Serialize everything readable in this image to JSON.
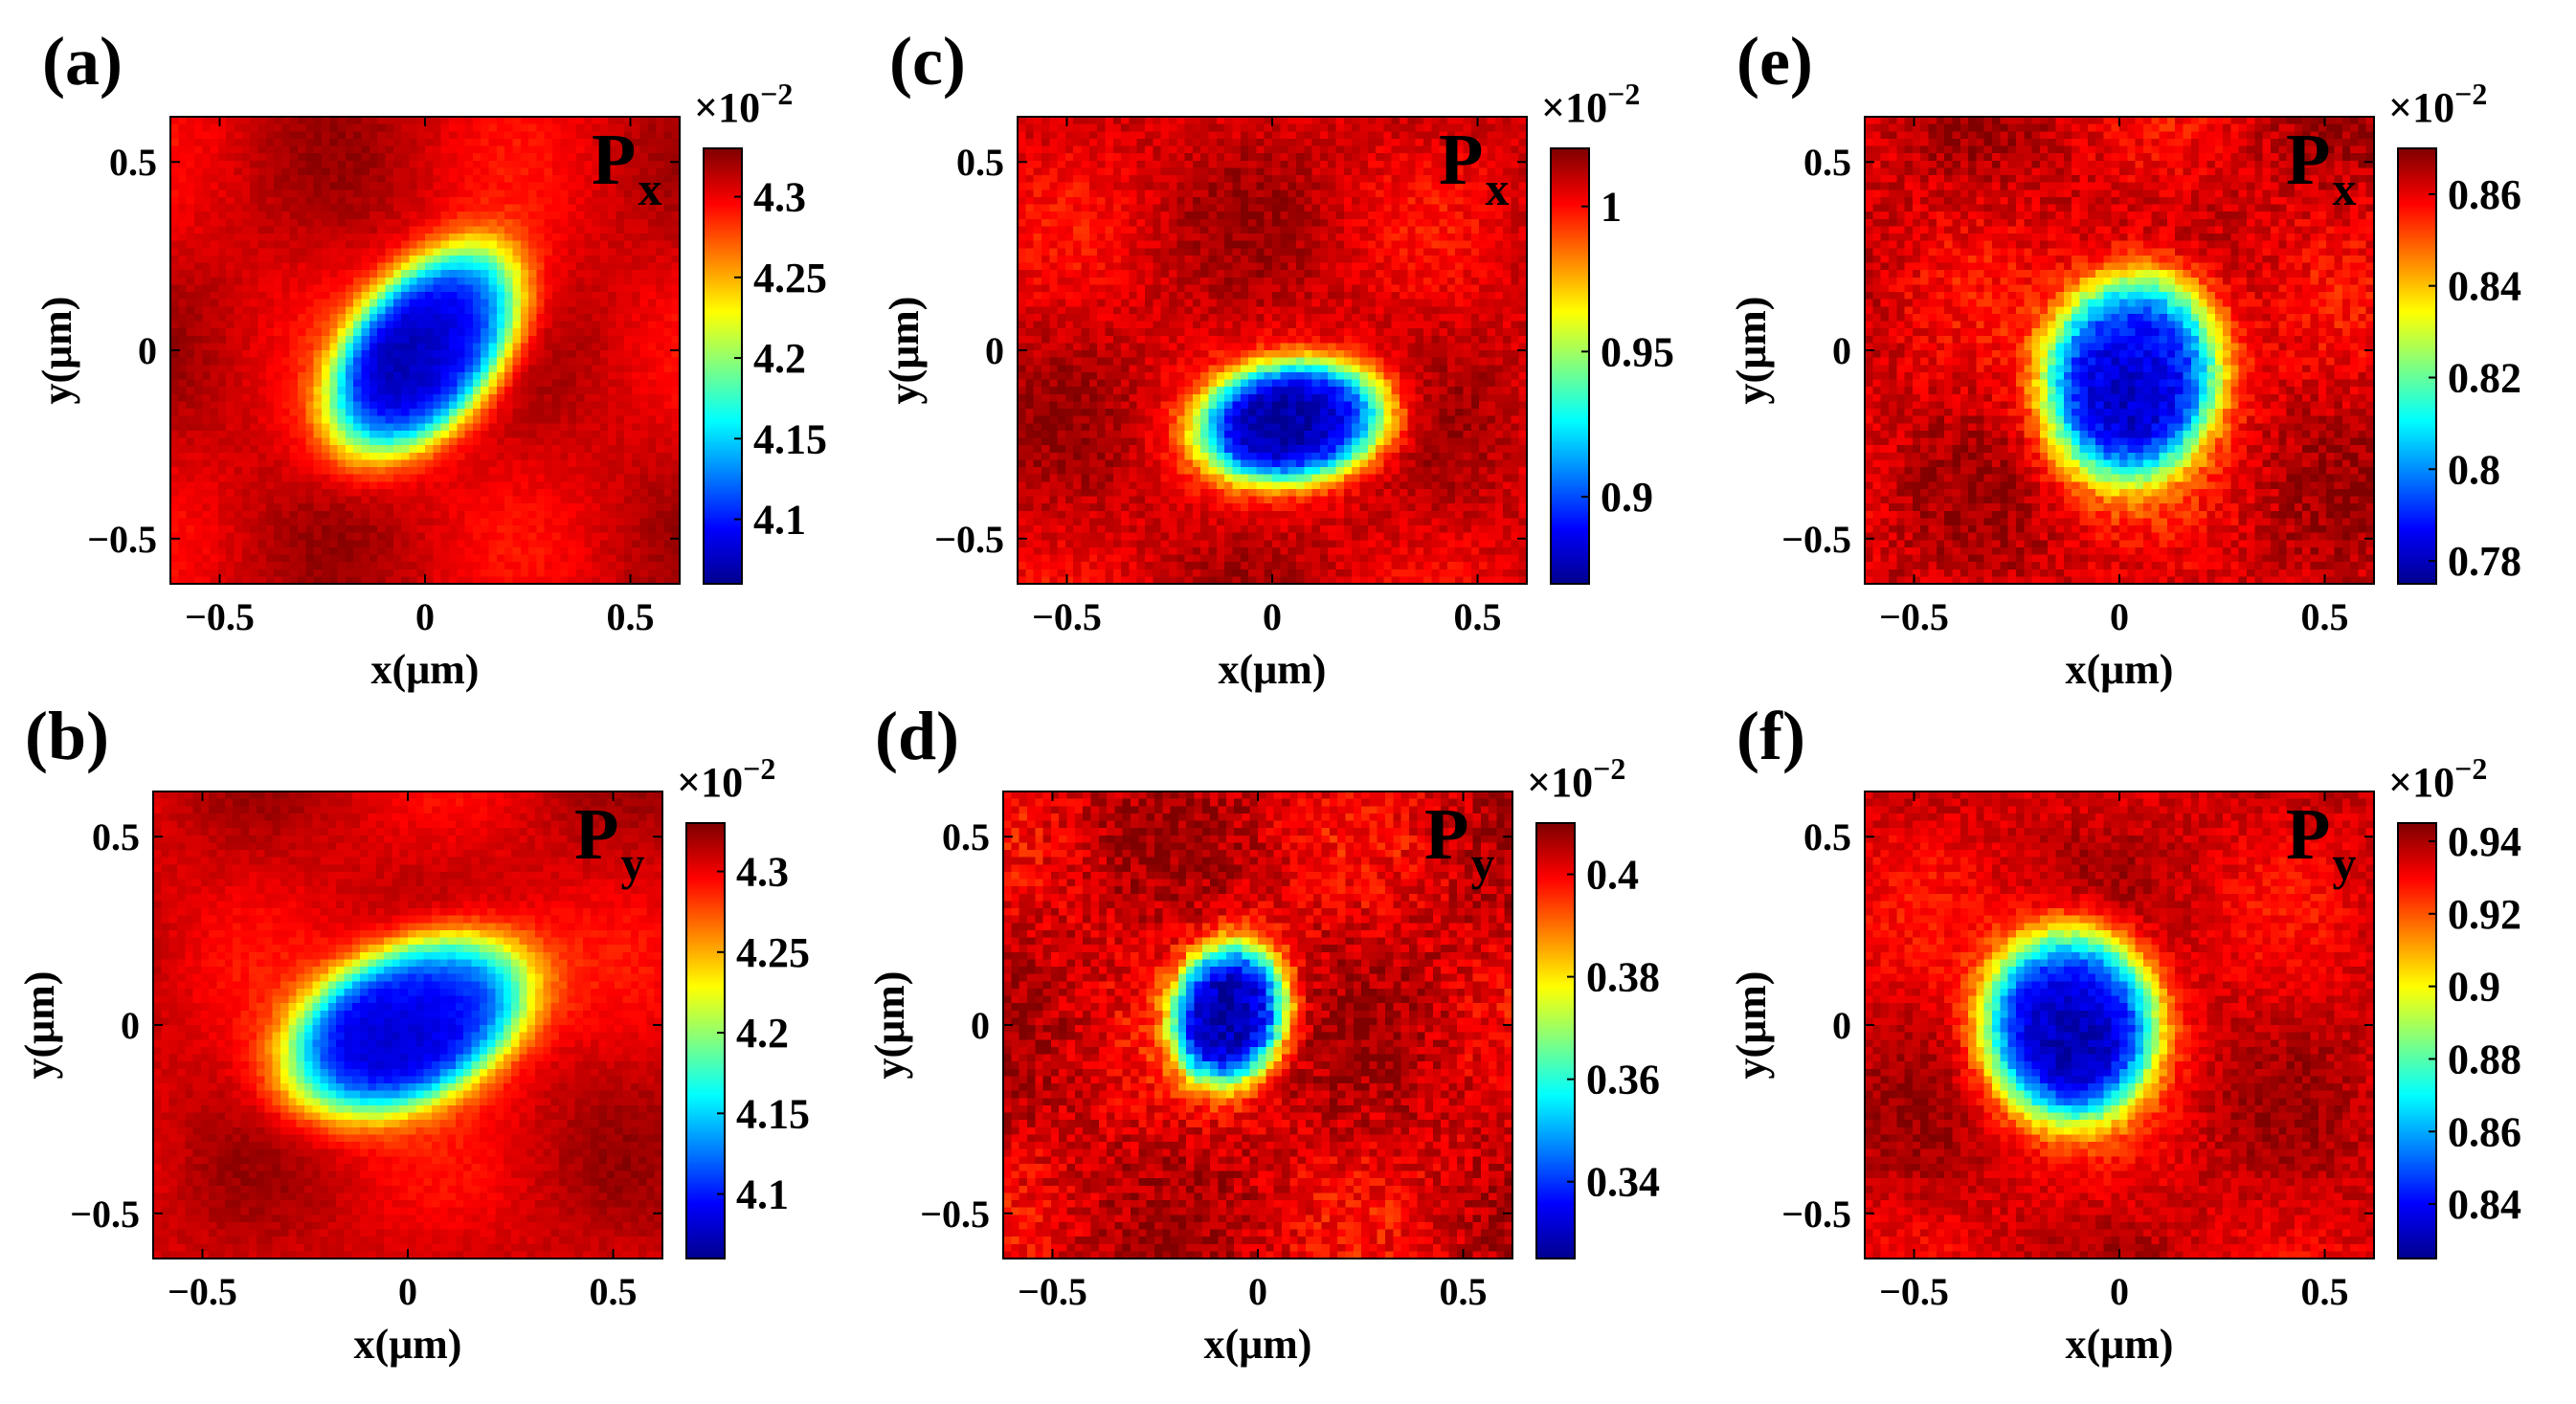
{
  "figure": {
    "description_free": true,
    "colormap": "jet",
    "colormap_stops": [
      "#00008f",
      "#0000ff",
      "#0080ff",
      "#00ffff",
      "#80ff80",
      "#ffff00",
      "#ff8000",
      "#ff0000",
      "#800000"
    ]
  },
  "chart_data": [
    {
      "type": "heatmap",
      "panel_label": "(a)",
      "component": "P",
      "component_sub": "x",
      "xlabel": "x(μm)",
      "ylabel": "y(μm)",
      "xlim": [
        -0.62,
        0.62
      ],
      "ylim": [
        -0.62,
        0.62
      ],
      "x_ticks": [
        -0.5,
        0,
        0.5
      ],
      "x_tick_labels": [
        "−0.5",
        "0",
        "0.5"
      ],
      "y_ticks": [
        -0.5,
        0,
        0.5
      ],
      "y_tick_labels": [
        "−0.5",
        "0",
        "0.5"
      ],
      "colorbar": {
        "exponent_label": "×10",
        "exponent": "−2",
        "range": [
          4.06,
          4.33
        ],
        "ticks": [
          4.1,
          4.15,
          4.2,
          4.25,
          4.3
        ],
        "tick_labels": [
          "4.1",
          "4.15",
          "4.2",
          "4.25",
          "4.3"
        ]
      },
      "field": {
        "min_value": 4.06,
        "max_value": 4.33,
        "center": [
          0.0,
          0.0
        ],
        "radius_major": 0.29,
        "radius_minor": 0.17,
        "rotation_deg": 55,
        "noise": 0.04
      }
    },
    {
      "type": "heatmap",
      "panel_label": "(b)",
      "component": "P",
      "component_sub": "y",
      "xlabel": "x(μm)",
      "ylabel": "y(μm)",
      "xlim": [
        -0.62,
        0.62
      ],
      "ylim": [
        -0.62,
        0.62
      ],
      "x_ticks": [
        -0.5,
        0,
        0.5
      ],
      "x_tick_labels": [
        "−0.5",
        "0",
        "0.5"
      ],
      "y_ticks": [
        -0.5,
        0,
        0.5
      ],
      "y_tick_labels": [
        "−0.5",
        "0",
        "0.5"
      ],
      "colorbar": {
        "exponent_label": "×10",
        "exponent": "−2",
        "range": [
          4.06,
          4.33
        ],
        "ticks": [
          4.1,
          4.15,
          4.2,
          4.25,
          4.3
        ],
        "tick_labels": [
          "4.1",
          "4.15",
          "4.2",
          "4.25",
          "4.3"
        ]
      },
      "field": {
        "min_value": 4.06,
        "max_value": 4.33,
        "center": [
          0.0,
          0.0
        ],
        "radius_major": 0.3,
        "radius_minor": 0.19,
        "rotation_deg": 30,
        "noise": 0.04
      }
    },
    {
      "type": "heatmap",
      "panel_label": "(c)",
      "component": "P",
      "component_sub": "x",
      "xlabel": "x(μm)",
      "ylabel": "y(μm)",
      "xlim": [
        -0.62,
        0.62
      ],
      "ylim": [
        -0.62,
        0.62
      ],
      "x_ticks": [
        -0.5,
        0,
        0.5
      ],
      "x_tick_labels": [
        "−0.5",
        "0",
        "0.5"
      ],
      "y_ticks": [
        -0.5,
        0,
        0.5
      ],
      "y_tick_labels": [
        "−0.5",
        "0",
        "0.5"
      ],
      "colorbar": {
        "exponent_label": "×10",
        "exponent": "−2",
        "range": [
          0.87,
          1.02
        ],
        "ticks": [
          0.9,
          0.95,
          1.0
        ],
        "tick_labels": [
          "0.9",
          "0.95",
          "1"
        ]
      },
      "field": {
        "min_value": 0.87,
        "max_value": 1.02,
        "center": [
          0.05,
          -0.19
        ],
        "radius_major": 0.22,
        "radius_minor": 0.15,
        "rotation_deg": 10,
        "noise": 0.08
      }
    },
    {
      "type": "heatmap",
      "panel_label": "(d)",
      "component": "P",
      "component_sub": "y",
      "xlabel": "x(μm)",
      "ylabel": "y(μm)",
      "xlim": [
        -0.62,
        0.62
      ],
      "ylim": [
        -0.62,
        0.62
      ],
      "x_ticks": [
        -0.5,
        0,
        0.5
      ],
      "x_tick_labels": [
        "−0.5",
        "0",
        "0.5"
      ],
      "y_ticks": [
        -0.5,
        0,
        0.5
      ],
      "y_tick_labels": [
        "−0.5",
        "0",
        "0.5"
      ],
      "colorbar": {
        "exponent_label": "×10",
        "exponent": "−2",
        "range": [
          0.325,
          0.41
        ],
        "ticks": [
          0.34,
          0.36,
          0.38,
          0.4
        ],
        "tick_labels": [
          "0.34",
          "0.36",
          "0.38",
          "0.4"
        ]
      },
      "field": {
        "min_value": 0.325,
        "max_value": 0.41,
        "center": [
          -0.07,
          0.03
        ],
        "radius_major": 0.18,
        "radius_minor": 0.13,
        "rotation_deg": 80,
        "noise": 0.12
      }
    },
    {
      "type": "heatmap",
      "panel_label": "(e)",
      "component": "P",
      "component_sub": "x",
      "xlabel": "x(μm)",
      "ylabel": "y(μm)",
      "xlim": [
        -0.62,
        0.62
      ],
      "ylim": [
        -0.62,
        0.62
      ],
      "x_ticks": [
        -0.5,
        0,
        0.5
      ],
      "x_tick_labels": [
        "−0.5",
        "0",
        "0.5"
      ],
      "y_ticks": [
        -0.5,
        0,
        0.5
      ],
      "y_tick_labels": [
        "−0.5",
        "0",
        "0.5"
      ],
      "colorbar": {
        "exponent_label": "×10",
        "exponent": "−2",
        "range": [
          0.775,
          0.87
        ],
        "ticks": [
          0.78,
          0.8,
          0.82,
          0.84,
          0.86
        ],
        "tick_labels": [
          "0.78",
          "0.8",
          "0.82",
          "0.84",
          "0.86"
        ]
      },
      "field": {
        "min_value": 0.775,
        "max_value": 0.87,
        "center": [
          0.03,
          -0.07
        ],
        "radius_major": 0.26,
        "radius_minor": 0.2,
        "rotation_deg": 80,
        "noise": 0.1
      }
    },
    {
      "type": "heatmap",
      "panel_label": "(f)",
      "component": "P",
      "component_sub": "y",
      "xlabel": "x(μm)",
      "ylabel": "y(μm)",
      "xlim": [
        -0.62,
        0.62
      ],
      "ylim": [
        -0.62,
        0.62
      ],
      "x_ticks": [
        -0.5,
        0,
        0.5
      ],
      "x_tick_labels": [
        "−0.5",
        "0",
        "0.5"
      ],
      "y_ticks": [
        -0.5,
        0,
        0.5
      ],
      "y_tick_labels": [
        "−0.5",
        "0",
        "0.5"
      ],
      "colorbar": {
        "exponent_label": "×10",
        "exponent": "−2",
        "range": [
          0.825,
          0.945
        ],
        "ticks": [
          0.84,
          0.86,
          0.88,
          0.9,
          0.92,
          0.94
        ],
        "tick_labels": [
          "0.84",
          "0.86",
          "0.88",
          "0.9",
          "0.92",
          "0.94"
        ]
      },
      "field": {
        "min_value": 0.825,
        "max_value": 0.945,
        "center": [
          -0.12,
          0.0
        ],
        "radius_major": 0.24,
        "radius_minor": 0.2,
        "rotation_deg": 90,
        "noise": 0.08
      }
    }
  ]
}
